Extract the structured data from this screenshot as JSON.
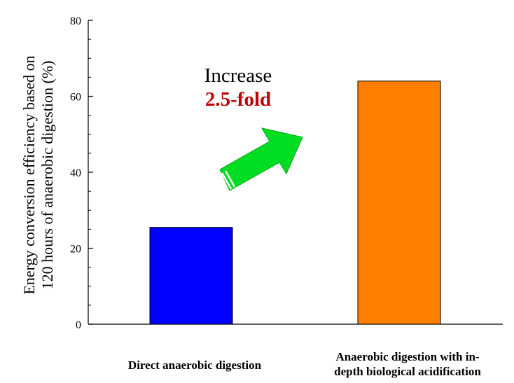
{
  "chart_data": {
    "type": "bar",
    "categories": [
      [
        "Direct anaerobic digestion"
      ],
      [
        "Anaerobic digestion with in-",
        "depth biological acidification"
      ]
    ],
    "values": [
      25.5,
      64.0
    ],
    "bar_colors": [
      "#0000ff",
      "#ff8000"
    ],
    "ylabel_lines": [
      "Energy conversion efficiency based on",
      "120 hours of anaerobic digestion (%)"
    ],
    "ylim": [
      0,
      80
    ],
    "yticks": [
      0,
      20,
      40,
      60,
      80
    ],
    "grid": false,
    "annotation": {
      "line1": "Increase",
      "line2": "2.5-fold",
      "line2_color": "#c00000",
      "arrow_color": "#00dd22"
    }
  }
}
